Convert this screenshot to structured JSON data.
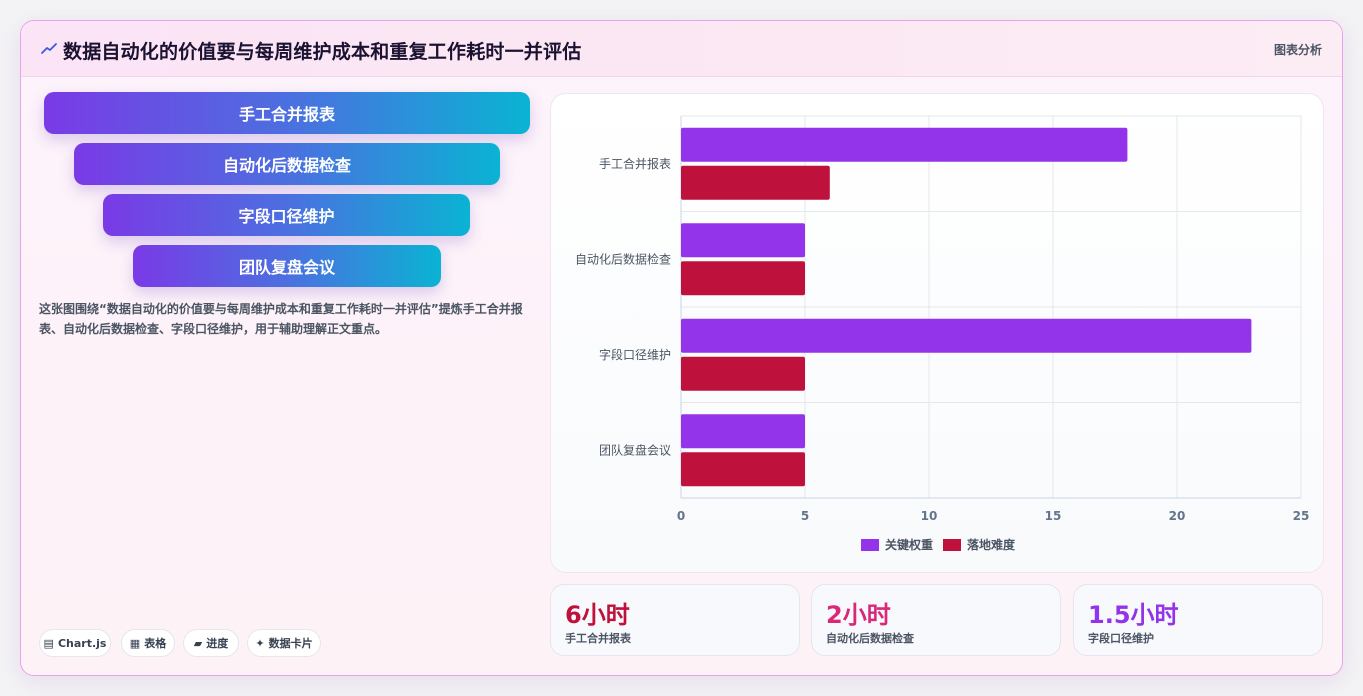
{
  "header": {
    "title": "数据自动化的价值要与每周维护成本和重复工作耗时一并评估",
    "link": "图表分析",
    "icon": "line-chart-icon"
  },
  "funnel": [
    {
      "label": "手工合并报表"
    },
    {
      "label": "自动化后数据检查"
    },
    {
      "label": "字段口径维护"
    },
    {
      "label": "团队复盘会议"
    }
  ],
  "description": "这张图围绕“数据自动化的价值要与每周维护成本和重复工作耗时一并评估”提炼手工合并报表、自动化后数据检查、字段口径维护，用于辅助理解正文重点。",
  "tags": [
    {
      "icon": "▤",
      "label": "Chart.js"
    },
    {
      "icon": "▦",
      "label": "表格"
    },
    {
      "icon": "▰",
      "label": "进度"
    },
    {
      "icon": "✦",
      "label": "数据卡片"
    }
  ],
  "chart_data": {
    "type": "bar",
    "orientation": "horizontal",
    "categories": [
      "手工合并报表",
      "自动化后数据检查",
      "字段口径维护",
      "团队复盘会议"
    ],
    "series": [
      {
        "name": "关键权重",
        "values": [
          18,
          5,
          23,
          5
        ],
        "color": "#9333ea"
      },
      {
        "name": "落地难度",
        "values": [
          6,
          5,
          5,
          5
        ],
        "color": "#be123c"
      }
    ],
    "xlim": [
      0,
      25
    ],
    "xticks": [
      "0",
      "5",
      "10",
      "15",
      "20",
      "25"
    ],
    "grid": true,
    "legend": "bottom"
  },
  "stats": [
    {
      "value": "6小时",
      "label": "手工合并报表",
      "color": "#be123c"
    },
    {
      "value": "2小时",
      "label": "自动化后数据检查",
      "color": "#db2777"
    },
    {
      "value": "1.5小时",
      "label": "字段口径维护",
      "color": "#9333ea"
    }
  ]
}
